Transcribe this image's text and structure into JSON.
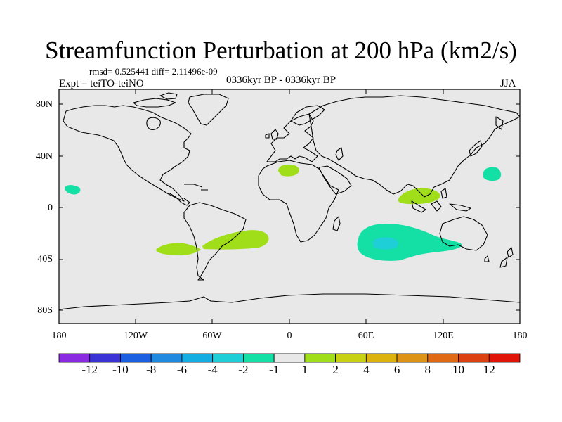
{
  "figure": {
    "title": "Streamfunction Perturbation at 200 hPa (km2/s)",
    "stats": "rmsd= 0.525441 diff= 2.11496e-09",
    "experiment": "Expt = teiTO-teiNO",
    "period": "0336kyr BP - 0336kyr BP",
    "season": "JJA"
  },
  "axes": {
    "lat_labels": [
      "80N",
      "40N",
      "0",
      "40S",
      "80S"
    ],
    "lon_labels": [
      "180",
      "120W",
      "60W",
      "0",
      "60E",
      "120E",
      "180"
    ]
  },
  "colorbar": {
    "labels": [
      "-12",
      "-10",
      "-8",
      "-6",
      "-4",
      "-2",
      "-1",
      "1",
      "2",
      "4",
      "6",
      "8",
      "10",
      "12"
    ],
    "colors": [
      "#8a2be2",
      "#3b33d6",
      "#1c5fe0",
      "#1f8ae0",
      "#14aee3",
      "#1fcfd7",
      "#14dfa4",
      "#e8e8e8",
      "#a0de1a",
      "#c8d213",
      "#dcb30d",
      "#dc9316",
      "#e06a14",
      "#dc4112",
      "#e01408"
    ]
  },
  "chart_data": {
    "type": "contour-map",
    "variable": "Streamfunction perturbation at 200 hPa",
    "units": "km2/s",
    "projection": "cylindrical equidistant",
    "lon_range": [
      -180,
      180
    ],
    "lat_range": [
      -90,
      90
    ],
    "features": [
      {
        "name": "north-africa-positive",
        "class": "1 to 2",
        "color": "#a0de1a",
        "center_lon": 0,
        "center_lat": 30
      },
      {
        "name": "southeast-asia-positive",
        "class": "1 to 2",
        "color": "#a0de1a",
        "center_lon": 103,
        "center_lat": 10
      },
      {
        "name": "south-atlantic-positive",
        "class": "1 to 2",
        "color": "#a0de1a",
        "center_lon": -35,
        "center_lat": -26
      },
      {
        "name": "south-pacific-positive",
        "class": "1 to 2",
        "color": "#a0de1a",
        "center_lon": -93,
        "center_lat": -33
      },
      {
        "name": "east-pacific-negative",
        "class": "-2 to -1",
        "color": "#14dfa4",
        "center_lon": -169,
        "center_lat": 15
      },
      {
        "name": "west-pacific-negative",
        "class": "-2 to -1",
        "color": "#14dfa4",
        "center_lon": 157,
        "center_lat": 26
      },
      {
        "name": "indian-ocean-negative",
        "class": "-2 to -1",
        "color": "#14dfa4",
        "center_lon": 86,
        "center_lat": -35
      },
      {
        "name": "indian-ocean-core",
        "class": "-4 to -2",
        "color": "#1fcfd7",
        "center_lon": 72,
        "center_lat": -28
      }
    ]
  }
}
